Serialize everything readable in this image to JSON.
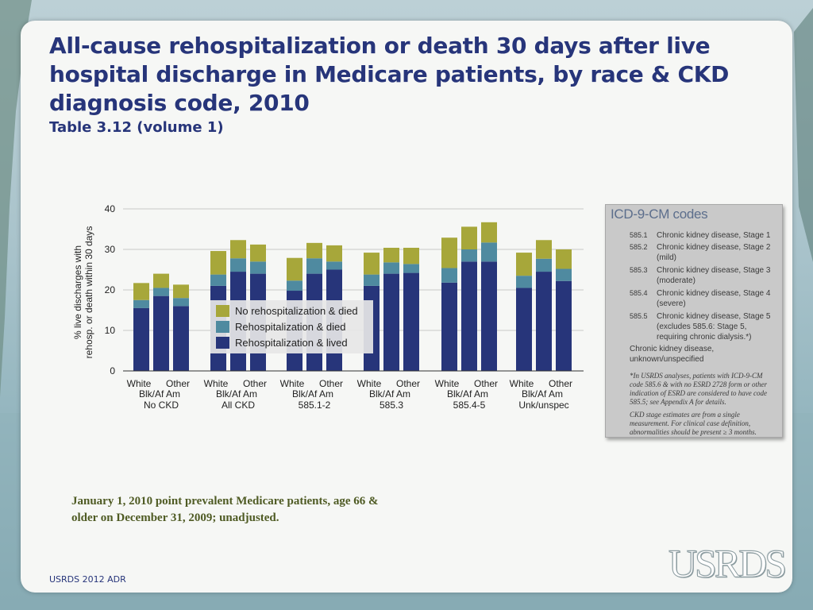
{
  "slide": {
    "title": "All-cause rehospitalization or death 30 days after live hospital discharge in Medicare patients, by race & CKD diagnosis code, 2010",
    "subtitle": "Table 3.12 (volume 1)",
    "note": "January 1, 2010 point prevalent Medicare patients, age 66 & older on December 31, 2009; unadjusted.",
    "footer": "USRDS 2012 ADR",
    "logo": "USRDS"
  },
  "colors": {
    "lived": "#27357a",
    "died_rehosp": "#4f8aa0",
    "died_norehosp": "#a7a73a"
  },
  "chart_data": {
    "type": "bar",
    "stacked": true,
    "ylabel": "% live discharges with rehosp. or death within 30 days",
    "ylim": [
      0,
      40
    ],
    "yticks": [
      0,
      10,
      20,
      30,
      40
    ],
    "race_labels": [
      "White",
      "Blk/Af Am",
      "Other"
    ],
    "groups": [
      "No CKD",
      "All CKD",
      "585.1-2",
      "585.3",
      "585.4-5",
      "Unk/unspec"
    ],
    "legend": [
      "No rehospitalization & died",
      "Rehospitalization & died",
      "Rehospitalization & lived"
    ],
    "series": [
      {
        "name": "Rehospitalization & lived",
        "values": [
          15.5,
          18.5,
          16.0,
          21.0,
          24.5,
          24.0,
          19.8,
          24.0,
          25.0,
          21.0,
          24.0,
          24.2,
          21.8,
          27.0,
          27.0,
          20.5,
          24.5,
          22.2
        ]
      },
      {
        "name": "Rehospitalization & died",
        "values": [
          2.0,
          2.0,
          2.0,
          2.8,
          3.3,
          3.0,
          2.5,
          3.8,
          2.0,
          2.8,
          2.8,
          2.2,
          3.6,
          3.0,
          4.7,
          3.0,
          3.2,
          3.0
        ]
      },
      {
        "name": "No rehospitalization & died",
        "values": [
          4.2,
          3.5,
          3.3,
          5.8,
          4.5,
          4.2,
          5.6,
          3.8,
          4.0,
          5.4,
          3.6,
          4.0,
          7.5,
          5.6,
          5.0,
          5.7,
          4.6,
          4.8
        ]
      }
    ]
  },
  "icd_panel": {
    "title": "ICD-9-CM codes",
    "rows": [
      {
        "code": "585.1",
        "desc": "Chronic kidney disease, Stage 1"
      },
      {
        "code": "585.2",
        "desc": "Chronic kidney disease, Stage 2 (mild)"
      },
      {
        "code": "585.3",
        "desc": "Chronic kidney disease, Stage 3 (moderate)"
      },
      {
        "code": "585.4",
        "desc": "Chronic kidney disease, Stage 4 (severe)"
      },
      {
        "code": "585.5",
        "desc": "Chronic kidney disease, Stage 5 (excludes 585.6: Stage 5, requiring chronic dialysis.*)"
      }
    ],
    "extra": "Chronic kidney disease, unknown/unspecified",
    "footnote1": "*In USRDS analyses, patients with ICD-9-CM code 585.6 & with no ESRD 2728 form or other indication of ESRD are considered to have code 585.5; see Appendix A for details.",
    "footnote2": "CKD stage estimates are from a single measurement. For clinical case definition, abnormalities should be present ≥ 3 months."
  }
}
